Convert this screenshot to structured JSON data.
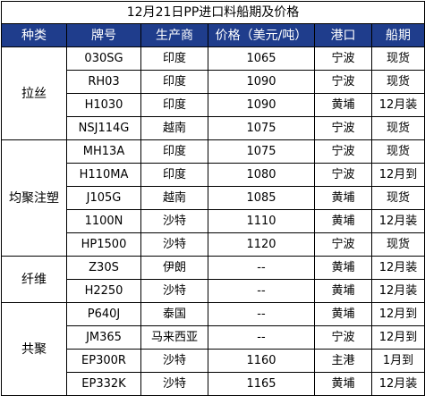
{
  "title": "12月21日PP进口料船期及价格",
  "headers": [
    "种类",
    "牌号",
    "生产商",
    "价格（美元/吨）",
    "港口",
    "船期"
  ],
  "groups": [
    {
      "category": "拉丝",
      "rows": [
        {
          "grade": "030SG",
          "producer": "印度",
          "price": "1065",
          "port": "宁波",
          "shipment": "现货"
        },
        {
          "grade": "RH03",
          "producer": "印度",
          "price": "1090",
          "port": "宁波",
          "shipment": "现货"
        },
        {
          "grade": "H1030",
          "producer": "印度",
          "price": "1090",
          "port": "黄埔",
          "shipment": "12月装"
        },
        {
          "grade": "NSJ114G",
          "producer": "越南",
          "price": "1075",
          "port": "宁波",
          "shipment": "现货"
        }
      ]
    },
    {
      "category": "均聚注塑",
      "rows": [
        {
          "grade": "MH13A",
          "producer": "印度",
          "price": "1075",
          "port": "宁波",
          "shipment": "现货"
        },
        {
          "grade": "H110MA",
          "producer": "印度",
          "price": "1080",
          "port": "宁波",
          "shipment": "12月到"
        },
        {
          "grade": "J105G",
          "producer": "越南",
          "price": "1085",
          "port": "黄埔",
          "shipment": "现货"
        },
        {
          "grade": "1100N",
          "producer": "沙特",
          "price": "1110",
          "port": "黄埔",
          "shipment": "12月装"
        },
        {
          "grade": "HP1500",
          "producer": "沙特",
          "price": "1120",
          "port": "宁波",
          "shipment": "现货"
        }
      ]
    },
    {
      "category": "纤维",
      "rows": [
        {
          "grade": "Z30S",
          "producer": "伊朗",
          "price": "--",
          "port": "黄埔",
          "shipment": "12月装"
        },
        {
          "grade": "H2250",
          "producer": "沙特",
          "price": "--",
          "port": "黄埔",
          "shipment": "12月装"
        }
      ]
    },
    {
      "category": "共聚",
      "rows": [
        {
          "grade": "P640J",
          "producer": "泰国",
          "price": "--",
          "port": "黄埔",
          "shipment": "12月到"
        },
        {
          "grade": "JM365",
          "producer": "马来西亚",
          "price": "--",
          "port": "宁波",
          "shipment": "12月到"
        },
        {
          "grade": "EP300R",
          "producer": "沙特",
          "price": "1160",
          "port": "主港",
          "shipment": "1月到"
        },
        {
          "grade": "EP332K",
          "producer": "沙特",
          "price": "1165",
          "port": "黄埔",
          "shipment": "12月装"
        }
      ]
    }
  ]
}
